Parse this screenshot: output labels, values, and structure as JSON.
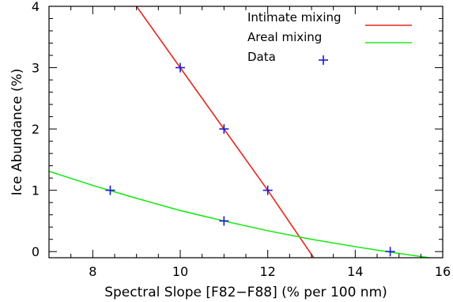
{
  "chart_data": {
    "type": "line",
    "xlabel": "Spectral Slope [F82−F88] (% per 100 nm)",
    "ylabel": "Ice Abundance  (%)",
    "xlim": [
      7,
      16
    ],
    "ylim": [
      -0.1,
      4
    ],
    "x_ticks": [
      8,
      10,
      12,
      14,
      16
    ],
    "y_ticks": [
      0,
      1,
      2,
      3,
      4
    ],
    "grid": false,
    "legend_position": "top-right",
    "series": [
      {
        "name": "Intimate mixing",
        "kind": "line",
        "color": "#e8261f",
        "x": [
          9.0,
          10.0,
          11.0,
          12.0,
          13.05
        ],
        "y": [
          4.0,
          3.0,
          2.0,
          1.0,
          -0.1
        ]
      },
      {
        "name": "Areal mixing",
        "kind": "line",
        "color": "#1fe81f",
        "x": [
          7.0,
          8.0,
          9.0,
          10.0,
          11.0,
          12.0,
          13.0,
          14.0,
          15.0,
          15.7
        ],
        "y": [
          1.31,
          1.08,
          0.87,
          0.67,
          0.5,
          0.34,
          0.2,
          0.08,
          -0.03,
          -0.1
        ]
      },
      {
        "name": "Data",
        "kind": "scatter",
        "marker": "+",
        "color": "#1a1ad6",
        "x": [
          8.4,
          10.0,
          11.0,
          12.0,
          11.0,
          14.8
        ],
        "y": [
          1.0,
          3.0,
          2.0,
          1.0,
          0.5,
          0.0
        ]
      }
    ]
  }
}
